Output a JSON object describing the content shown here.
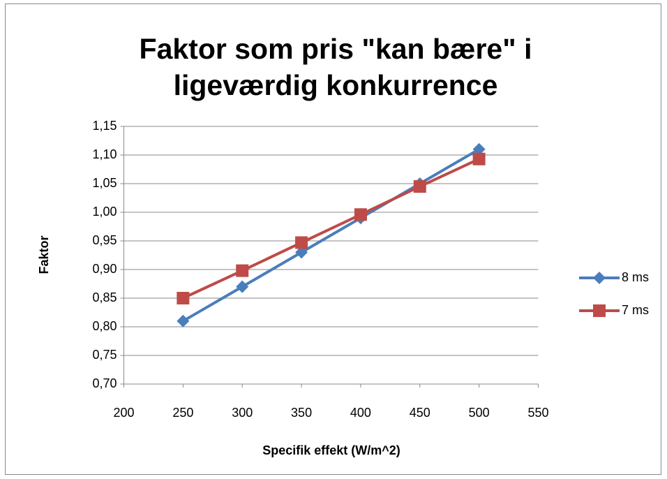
{
  "chart_data": {
    "type": "line",
    "title": "Faktor som pris \"kan bære\" i ligeværdig konkurrence",
    "xlabel": "Specifik effekt (W/m^2)",
    "ylabel": "Faktor",
    "x": [
      250,
      300,
      350,
      400,
      450,
      500
    ],
    "series": [
      {
        "name": "8 ms",
        "color": "#4a7ebb",
        "marker": "diamond",
        "values": [
          0.81,
          0.87,
          0.93,
          0.99,
          1.05,
          1.11
        ]
      },
      {
        "name": "7 ms",
        "color": "#be4b48",
        "marker": "square",
        "values": [
          0.85,
          0.898,
          0.947,
          0.996,
          1.045,
          1.093
        ]
      }
    ],
    "xlim": [
      200,
      550
    ],
    "xticks": [
      200,
      250,
      300,
      350,
      400,
      450,
      500,
      550
    ],
    "ylim": [
      0.7,
      1.15
    ],
    "yticks": [
      {
        "value": 0.7,
        "label": "0,70"
      },
      {
        "value": 0.75,
        "label": "0,75"
      },
      {
        "value": 0.8,
        "label": "0,80"
      },
      {
        "value": 0.85,
        "label": "0,85"
      },
      {
        "value": 0.9,
        "label": "0,90"
      },
      {
        "value": 0.95,
        "label": "0,95"
      },
      {
        "value": 1.0,
        "label": "1,00"
      },
      {
        "value": 1.05,
        "label": "1,05"
      },
      {
        "value": 1.1,
        "label": "1,10"
      },
      {
        "value": 1.15,
        "label": "1,15"
      }
    ],
    "grid": true,
    "legend": "right"
  }
}
